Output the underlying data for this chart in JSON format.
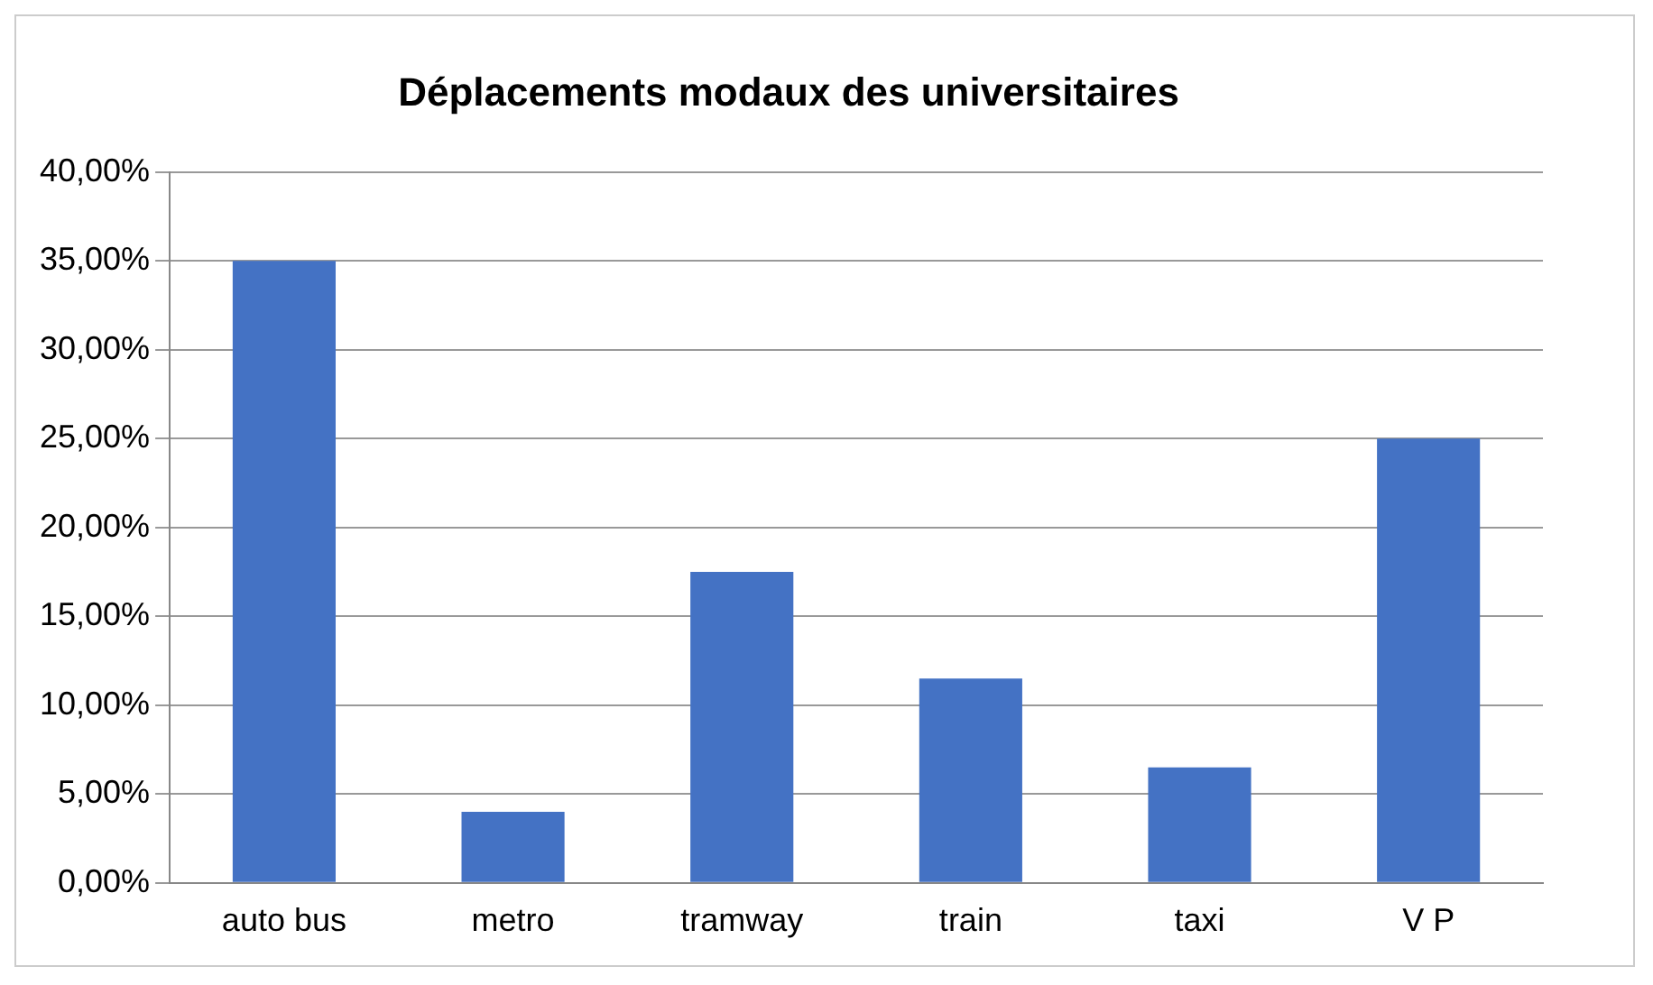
{
  "chart_data": {
    "type": "bar",
    "title": "Déplacements modaux des universitaires",
    "categories": [
      "auto bus",
      "metro",
      "tramway",
      "train",
      "taxi",
      "V P"
    ],
    "values": [
      35,
      4,
      17.5,
      11.5,
      6.5,
      25
    ],
    "color": "#4472c4",
    "ylim": [
      0,
      40
    ],
    "yticks": [
      {
        "value": 0,
        "label": "0,00%"
      },
      {
        "value": 5,
        "label": "5,00%"
      },
      {
        "value": 10,
        "label": "10,00%"
      },
      {
        "value": 15,
        "label": "15,00%"
      },
      {
        "value": 20,
        "label": "20,00%"
      },
      {
        "value": 25,
        "label": "25,00%"
      },
      {
        "value": 30,
        "label": "30,00%"
      },
      {
        "value": 35,
        "label": "35,00%"
      },
      {
        "value": 40,
        "label": "40,00%"
      }
    ],
    "grid": "y"
  }
}
